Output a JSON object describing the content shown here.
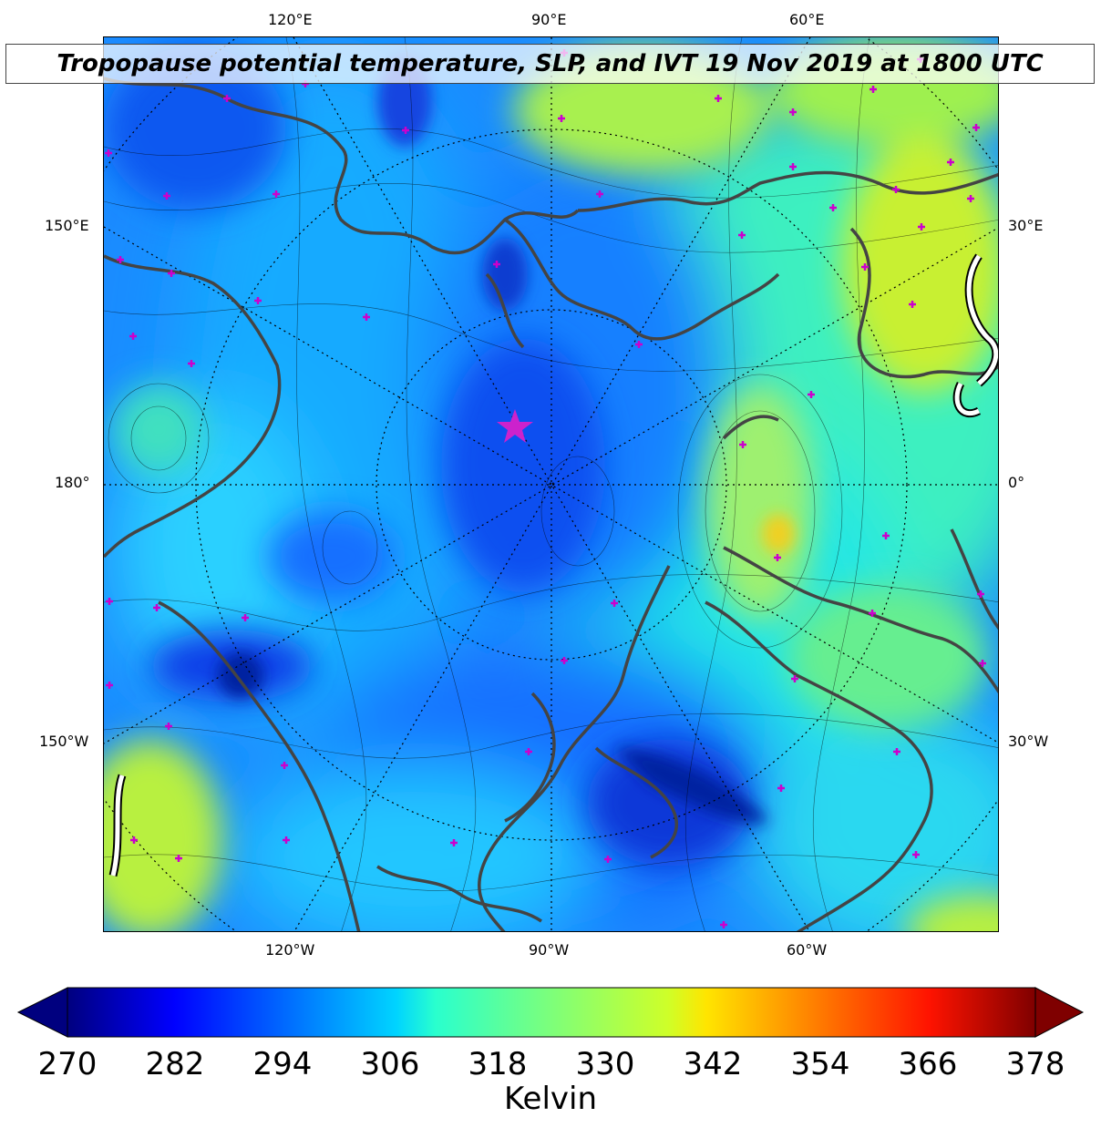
{
  "title": "Tropopause potential temperature, SLP, and IVT 19 Nov 2019 at 1800 UTC",
  "map": {
    "projection": "north-polar-stereographic",
    "longitude_labels": {
      "top": [
        "120°E",
        "90°E",
        "60°E"
      ],
      "bottom": [
        "120°W",
        "90°W",
        "60°W"
      ],
      "left": [
        "150°E",
        "180°",
        "150°W"
      ],
      "right": [
        "30°E",
        "0°",
        "30°W"
      ]
    },
    "field_colormap": "jet",
    "field_units": "Kelvin",
    "contour_color": "#000000",
    "coastline_color": "#444444",
    "marker_color": "#cc00cc",
    "ivt_contour_color": "#ffffff"
  },
  "colorbar": {
    "ticks": [
      "270",
      "282",
      "294",
      "306",
      "318",
      "330",
      "342",
      "354",
      "366",
      "378"
    ],
    "min": 270,
    "max": 378,
    "label": "Kelvin",
    "extend": "both"
  }
}
